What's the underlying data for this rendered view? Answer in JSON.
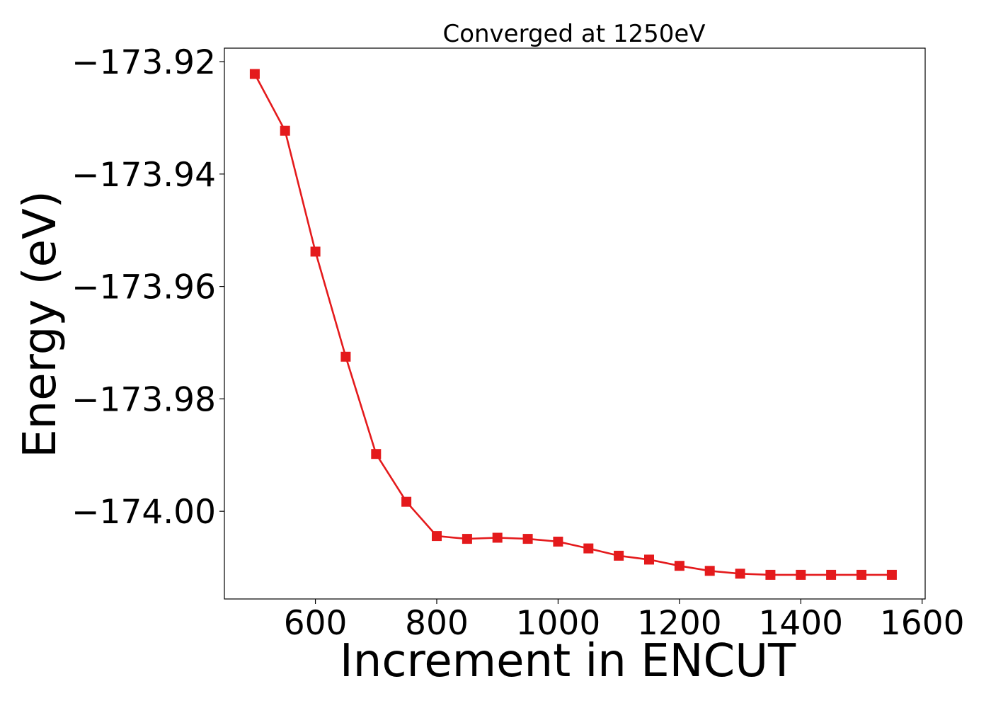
{
  "chart_data": {
    "type": "line",
    "title": "Converged at 1250eV",
    "xlabel": "Increment in ENCUT",
    "ylabel": "Energy (eV)",
    "xlim": [
      450,
      1605
    ],
    "ylim": [
      -174.0156,
      -173.9176
    ],
    "x_ticks": [
      600,
      800,
      1000,
      1200,
      1400,
      1600
    ],
    "x_tick_labels": [
      "600",
      "800",
      "1000",
      "1200",
      "1400",
      "1600"
    ],
    "y_ticks": [
      -173.92,
      -173.94,
      -173.96,
      -173.98,
      -174.0
    ],
    "y_tick_labels": [
      "−173.92",
      "−173.94",
      "−173.96",
      "−173.98",
      "−174.00"
    ],
    "grid": false,
    "series": [
      {
        "color": "#e41a1c",
        "marker": "square",
        "x": [
          500,
          550,
          600,
          650,
          700,
          750,
          800,
          850,
          900,
          950,
          1000,
          1050,
          1100,
          1150,
          1200,
          1250,
          1300,
          1350,
          1400,
          1450,
          1500,
          1550
        ],
        "y": [
          -173.9222,
          -173.9323,
          -173.9538,
          -173.9725,
          -173.9898,
          -173.9983,
          -174.0044,
          -174.0049,
          -174.0047,
          -174.0049,
          -174.0054,
          -174.0066,
          -174.0079,
          -174.0086,
          -174.0097,
          -174.0106,
          -174.0111,
          -174.0113,
          -174.0113,
          -174.0113,
          -174.0113,
          -174.0113
        ]
      }
    ]
  }
}
